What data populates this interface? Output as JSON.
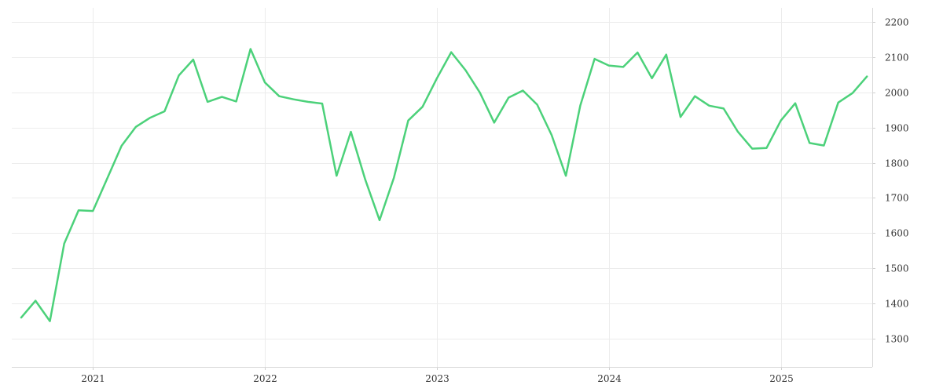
{
  "chart_data": {
    "type": "line",
    "title": "",
    "xlabel": "",
    "ylabel": "",
    "x_tick_labels": [
      "2021",
      "2022",
      "2023",
      "2024",
      "2025"
    ],
    "y_ticks": [
      1300,
      1400,
      1500,
      1600,
      1700,
      1800,
      1900,
      2000,
      2100,
      2200
    ],
    "ylim": [
      1220,
      2240
    ],
    "xlim": [
      "2020-08",
      "2025-08"
    ],
    "grid": true,
    "y_axis_position": "right",
    "colors": {
      "line": "#4cd17a"
    },
    "series": [
      {
        "x": [
          "2020-08",
          "2020-09",
          "2020-10",
          "2020-11",
          "2020-12",
          "2021-01",
          "2021-02",
          "2021-03",
          "2021-04",
          "2021-05",
          "2021-06",
          "2021-07",
          "2021-08",
          "2021-09",
          "2021-10",
          "2021-11",
          "2021-12",
          "2022-01",
          "2022-02",
          "2022-03",
          "2022-04",
          "2022-05",
          "2022-06",
          "2022-07",
          "2022-08",
          "2022-09",
          "2022-10",
          "2022-11",
          "2022-12",
          "2023-01",
          "2023-02",
          "2023-03",
          "2023-04",
          "2023-05",
          "2023-06",
          "2023-07",
          "2023-08",
          "2023-09",
          "2023-10",
          "2023-11",
          "2023-12",
          "2024-01",
          "2024-02",
          "2024-03",
          "2024-04",
          "2024-05",
          "2024-06",
          "2024-07",
          "2024-08",
          "2024-09",
          "2024-10",
          "2024-11",
          "2024-12",
          "2025-01",
          "2025-02",
          "2025-03",
          "2025-04",
          "2025-05",
          "2025-06",
          "2025-07"
        ],
        "values": [
          1360,
          1408,
          1350,
          1570,
          1665,
          1663,
          1755,
          1848,
          1902,
          1928,
          1946,
          2048,
          2093,
          1973,
          1987,
          1974,
          2123,
          2028,
          1989,
          1980,
          1973,
          1968,
          1763,
          1888,
          1752,
          1637,
          1757,
          1920,
          1959,
          2040,
          2114,
          2063,
          1999,
          1914,
          1985,
          2005,
          1965,
          1879,
          1763,
          1962,
          2095,
          2076,
          2072,
          2113,
          2040,
          2107,
          1930,
          1989,
          1962,
          1954,
          1888,
          1840,
          1842,
          1920,
          1969,
          1856,
          1849,
          1971,
          1998,
          2045
        ]
      }
    ]
  }
}
